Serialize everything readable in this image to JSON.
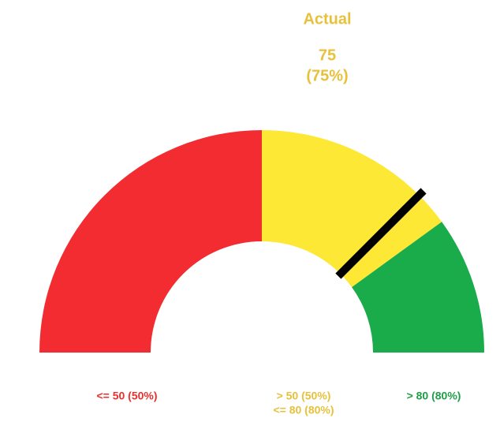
{
  "chart_data": {
    "type": "gauge",
    "title": "Actual",
    "title_color": "#e8c13c",
    "values": [
      75
    ],
    "value_labels": [
      "(75%)"
    ],
    "needle_color": "#000000",
    "ylim": [
      0,
      100
    ],
    "bands": [
      {
        "end": 50,
        "color": "#f22c30",
        "text_color": "#e8302f",
        "labels": [
          "<= 50 (50%)"
        ]
      },
      {
        "end": 80,
        "color": "#fde935",
        "text_color": "#e6c13b",
        "labels": [
          "> 50 (50%)",
          "<= 80 (80%)"
        ]
      },
      {
        "end": 100,
        "color": "#1aab4b",
        "text_color": "#1f9e48",
        "labels": [
          "> 80 (80%)"
        ]
      }
    ]
  }
}
